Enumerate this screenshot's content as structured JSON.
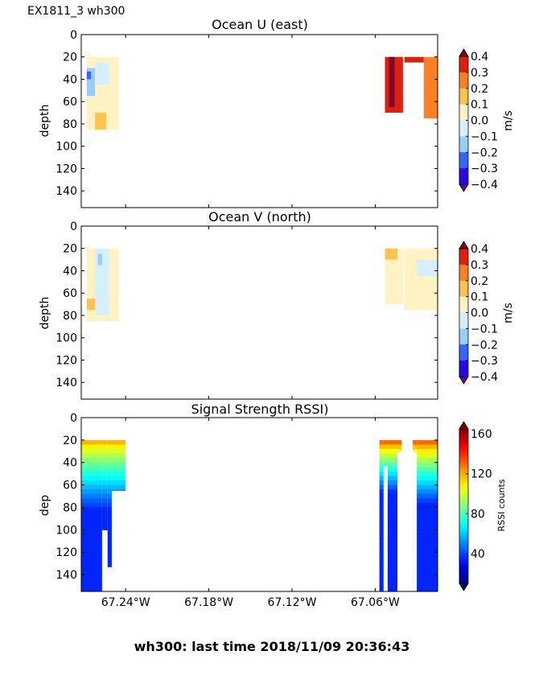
{
  "figure": {
    "suptitle": "EX1811_3 wh300",
    "footer": "wh300: last time 2018/11/09 20:36:43"
  },
  "chart_data": [
    {
      "type": "heatmap",
      "title": "Ocean U (east)",
      "ylabel": "depth",
      "xlabel": "",
      "ylim": [
        155,
        0
      ],
      "yticks": [
        "0",
        "20",
        "40",
        "60",
        "80",
        "100",
        "120",
        "140"
      ],
      "xticks": [],
      "colorbar": {
        "label": "m/s",
        "ticks": [
          "0.4",
          "0.3",
          "0.2",
          "0.1",
          "0.0",
          "−0.1",
          "−0.2",
          "−0.3",
          "−0.4"
        ],
        "range": [
          -0.4,
          0.4
        ],
        "levels": [
          -0.4,
          -0.3,
          -0.2,
          -0.1,
          0.0,
          0.1,
          0.2,
          0.3,
          0.4
        ],
        "colors": [
          "#2a08e8",
          "#3366ff",
          "#99ccff",
          "#d6efff",
          "#fff3c4",
          "#ffc34d",
          "#ff8020",
          "#e0200c"
        ],
        "extend_under": "#5a0aa0",
        "extend_over": "#800030"
      },
      "patches": [
        {
          "lon_range": [
            -67.268,
            -67.245
          ],
          "depth_range": [
            20,
            85
          ],
          "value": 0.0
        },
        {
          "lon_range": [
            -67.268,
            -67.262
          ],
          "depth_range": [
            30,
            55
          ],
          "value": -0.15
        },
        {
          "lon_range": [
            -67.268,
            -67.265
          ],
          "depth_range": [
            33,
            40
          ],
          "value": -0.25
        },
        {
          "lon_range": [
            -67.262,
            -67.252
          ],
          "depth_range": [
            25,
            45
          ],
          "value": -0.05
        },
        {
          "lon_range": [
            -67.262,
            -67.254
          ],
          "depth_range": [
            70,
            85
          ],
          "value": 0.15
        },
        {
          "lon_range": [
            -67.053,
            -67.04
          ],
          "depth_range": [
            20,
            70
          ],
          "value": 0.35
        },
        {
          "lon_range": [
            -67.05,
            -67.046
          ],
          "depth_range": [
            20,
            65
          ],
          "value": 0.45
        },
        {
          "lon_range": [
            -67.039,
            -67.025
          ],
          "depth_range": [
            20,
            25
          ],
          "value": 0.3
        },
        {
          "lon_range": [
            -67.025,
            -67.013
          ],
          "depth_range": [
            20,
            75
          ],
          "value": 0.25
        }
      ]
    },
    {
      "type": "heatmap",
      "title": "Ocean V (north)",
      "ylabel": "depth",
      "xlabel": "",
      "ylim": [
        155,
        0
      ],
      "yticks": [
        "0",
        "20",
        "40",
        "60",
        "80",
        "100",
        "120",
        "140"
      ],
      "xticks": [],
      "colorbar": {
        "label": "m/s",
        "ticks": [
          "0.4",
          "0.3",
          "0.2",
          "0.1",
          "0.0",
          "−0.1",
          "−0.2",
          "−0.3",
          "−0.4"
        ],
        "range": [
          -0.4,
          0.4
        ],
        "levels": [
          -0.4,
          -0.3,
          -0.2,
          -0.1,
          0.0,
          0.1,
          0.2,
          0.3,
          0.4
        ],
        "colors": [
          "#2a08e8",
          "#3366ff",
          "#99ccff",
          "#d6efff",
          "#fff3c4",
          "#ffc34d",
          "#ff8020",
          "#e0200c"
        ],
        "extend_under": "#5a0aa0",
        "extend_over": "#800030"
      },
      "patches": [
        {
          "lon_range": [
            -67.268,
            -67.245
          ],
          "depth_range": [
            20,
            85
          ],
          "value": 0.05
        },
        {
          "lon_range": [
            -67.262,
            -67.252
          ],
          "depth_range": [
            20,
            80
          ],
          "value": -0.05
        },
        {
          "lon_range": [
            -67.26,
            -67.257
          ],
          "depth_range": [
            25,
            35
          ],
          "value": -0.15
        },
        {
          "lon_range": [
            -67.268,
            -67.262
          ],
          "depth_range": [
            65,
            75
          ],
          "value": 0.15
        },
        {
          "lon_range": [
            -67.053,
            -67.04
          ],
          "depth_range": [
            20,
            70
          ],
          "value": 0.05
        },
        {
          "lon_range": [
            -67.053,
            -67.044
          ],
          "depth_range": [
            20,
            30
          ],
          "value": 0.15
        },
        {
          "lon_range": [
            -67.039,
            -67.013
          ],
          "depth_range": [
            20,
            75
          ],
          "value": 0.05
        },
        {
          "lon_range": [
            -67.03,
            -67.013
          ],
          "depth_range": [
            30,
            45
          ],
          "value": -0.05
        }
      ]
    },
    {
      "type": "heatmap",
      "title": "Signal Strength RSSI)",
      "ylabel": "dep",
      "xlabel": "",
      "ylim": [
        155,
        0
      ],
      "yticks": [
        "0",
        "20",
        "40",
        "60",
        "80",
        "100",
        "120",
        "140"
      ],
      "xticks": [
        "67.24°W",
        "67.18°W",
        "67.12°W",
        "67.06°W"
      ],
      "xtick_values": [
        -67.24,
        -67.18,
        -67.12,
        -67.06
      ],
      "xlim": [
        -67.272,
        -67.015
      ],
      "colorbar": {
        "label": "RSSI counts",
        "ticks": [
          "160",
          "120",
          "80",
          "40"
        ],
        "tick_values": [
          160,
          120,
          80,
          40
        ],
        "range": [
          10,
          165
        ],
        "colormap": "jet"
      },
      "columns": [
        {
          "lon_range": [
            -67.272,
            -67.257
          ],
          "depth_bottom": 155,
          "surface_value": 118,
          "decay_depth": 60
        },
        {
          "lon_range": [
            -67.257,
            -67.253
          ],
          "depth_bottom": 100,
          "surface_value": 118,
          "decay_depth": 60
        },
        {
          "lon_range": [
            -67.253,
            -67.25
          ],
          "depth_bottom": 133,
          "surface_value": 118,
          "decay_depth": 60
        },
        {
          "lon_range": [
            -67.25,
            -67.24
          ],
          "depth_bottom": 65,
          "surface_value": 118,
          "decay_depth": 60
        },
        {
          "lon_range": [
            -67.057,
            -67.054
          ],
          "depth_bottom": 155,
          "surface_value": 130,
          "decay_depth": 45
        },
        {
          "lon_range": [
            -67.054,
            -67.051
          ],
          "depth_bottom": 43,
          "surface_value": 130,
          "decay_depth": 45
        },
        {
          "lon_range": [
            -67.051,
            -67.044
          ],
          "depth_bottom": 155,
          "surface_value": 130,
          "decay_depth": 45
        },
        {
          "lon_range": [
            -67.044,
            -67.041
          ],
          "depth_bottom": 30,
          "surface_value": 130,
          "decay_depth": 45
        },
        {
          "lon_range": [
            -67.033,
            -67.03
          ],
          "depth_bottom": 30,
          "surface_value": 130,
          "decay_depth": 45
        },
        {
          "lon_range": [
            -67.03,
            -67.015
          ],
          "depth_bottom": 155,
          "surface_value": 130,
          "decay_depth": 55
        }
      ]
    }
  ]
}
